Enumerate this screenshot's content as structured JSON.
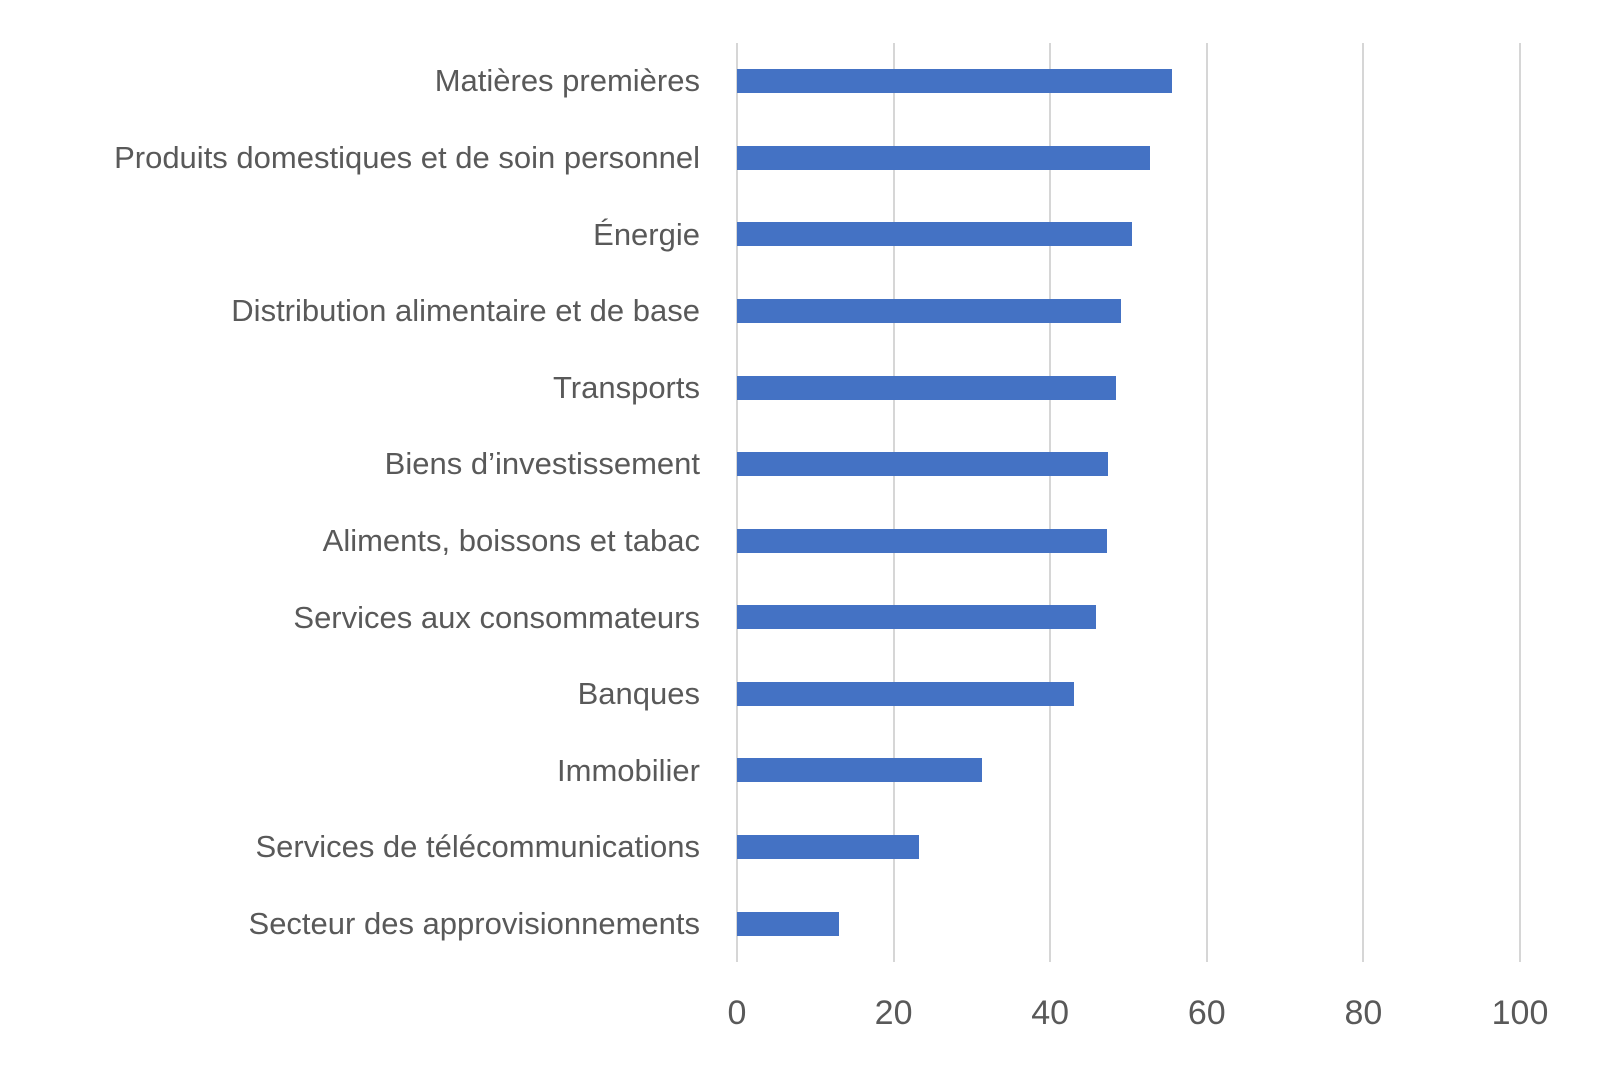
{
  "chart_data": {
    "type": "bar",
    "orientation": "horizontal",
    "title": "",
    "xlabel": "",
    "ylabel": "",
    "categories": [
      "Matières premières",
      "Produits domestiques et de soin personnel",
      "Énergie",
      "Distribution alimentaire et de base",
      "Transports",
      "Biens d’investissement",
      "Aliments, boissons et tabac",
      "Services aux consommateurs",
      "Banques",
      "Immobilier",
      "Services de télécommunications",
      "Secteur des approvisionnements"
    ],
    "values": [
      55.5,
      52.7,
      50.4,
      49.0,
      48.4,
      47.4,
      47.2,
      45.8,
      43.0,
      31.3,
      23.3,
      13.0
    ],
    "xlim": [
      0,
      100
    ],
    "x_ticks": [
      0,
      20,
      40,
      60,
      80,
      100
    ],
    "grid": "vertical",
    "legend": "none",
    "colors": {
      "bar": "#4472C4",
      "gridline": "#D6D6D6",
      "category_label": "#595959",
      "tick_label": "#595959",
      "background": "#FFFFFF"
    }
  }
}
